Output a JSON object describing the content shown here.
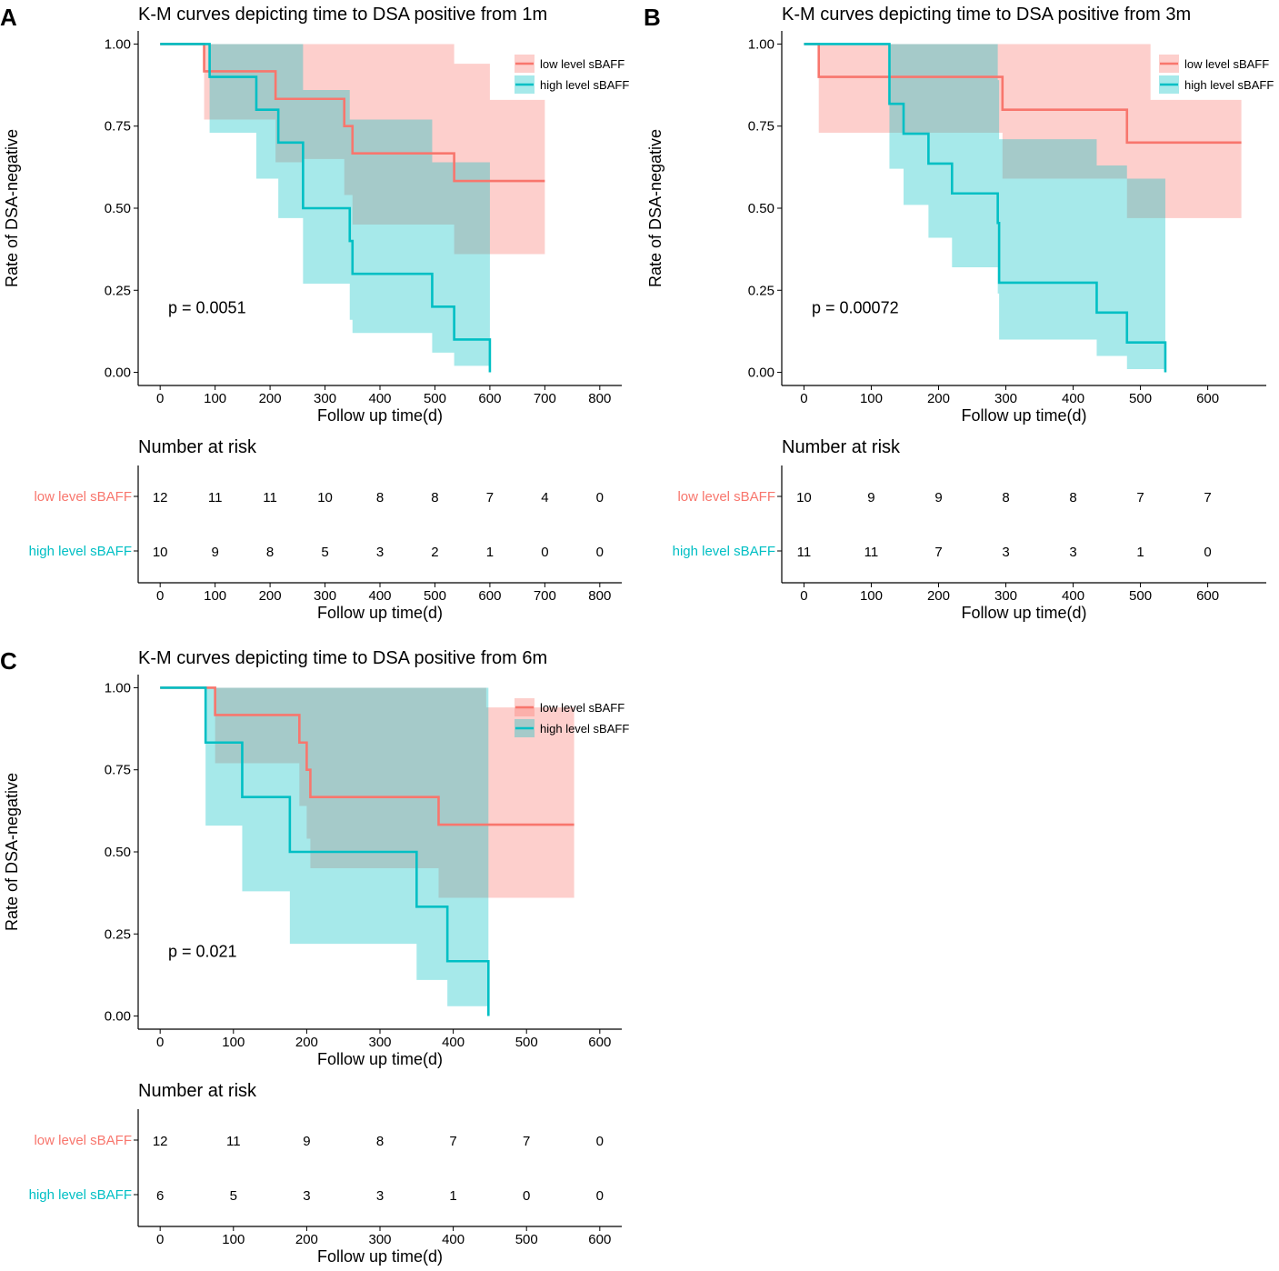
{
  "colors": {
    "low": "#F8766D",
    "high": "#00BFC4",
    "low_fill": "#F8766D",
    "high_fill": "#00BFC4",
    "axis": "#000000"
  },
  "chart_data": [
    {
      "panel_label": "A",
      "title": "K-M curves depicting time to DSA positive from 1m",
      "type": "line",
      "xlabel": "Follow up time(d)",
      "ylabel": "Rate of DSA-negative",
      "xlim": [
        -40,
        840
      ],
      "ylim": [
        -0.04,
        1.04
      ],
      "xticks": [
        0,
        100,
        200,
        300,
        400,
        500,
        600,
        700,
        800
      ],
      "yticks": [
        0,
        0.25,
        0.5,
        0.75,
        1.0
      ],
      "ytick_labels": [
        "0.00",
        "0.25",
        "0.50",
        "0.75",
        "1.00"
      ],
      "p_value": "p = 0.0051",
      "legend": [
        "low level sBAFF",
        "high level sBAFF"
      ],
      "series": [
        {
          "name": "low level sBAFF",
          "color_key": "low",
          "steps": [
            [
              0,
              1.0
            ],
            [
              80,
              0.917
            ],
            [
              160,
              0.917
            ],
            [
              210,
              0.833
            ],
            [
              335,
              0.75
            ],
            [
              350,
              0.667
            ],
            [
              535,
              0.583
            ],
            [
              700,
              0.583
            ]
          ],
          "ci": [
            [
              0,
              1.0,
              1.0
            ],
            [
              80,
              1.0,
              0.77
            ],
            [
              160,
              1.0,
              0.77
            ],
            [
              210,
              1.0,
              0.64
            ],
            [
              260,
              1.0,
              0.65
            ],
            [
              335,
              1.0,
              0.54
            ],
            [
              350,
              1.0,
              0.45
            ],
            [
              535,
              0.94,
              0.36
            ],
            [
              600,
              0.83,
              0.36
            ],
            [
              700,
              0.83,
              0.36
            ]
          ],
          "end": 700
        },
        {
          "name": "high level sBAFF",
          "color_key": "high",
          "steps": [
            [
              0,
              1.0
            ],
            [
              90,
              0.9
            ],
            [
              175,
              0.8
            ],
            [
              215,
              0.7
            ],
            [
              260,
              0.5
            ],
            [
              345,
              0.4
            ],
            [
              350,
              0.3
            ],
            [
              495,
              0.2
            ],
            [
              535,
              0.1
            ],
            [
              600,
              0.0
            ]
          ],
          "ci": [
            [
              0,
              1.0,
              1.0
            ],
            [
              90,
              1.0,
              0.73
            ],
            [
              175,
              1.0,
              0.59
            ],
            [
              215,
              1.0,
              0.47
            ],
            [
              260,
              0.86,
              0.27
            ],
            [
              345,
              0.77,
              0.16
            ],
            [
              350,
              0.77,
              0.12
            ],
            [
              495,
              0.64,
              0.06
            ],
            [
              535,
              0.64,
              0.02
            ],
            [
              600,
              0.64,
              0.02
            ]
          ],
          "end": 600
        }
      ],
      "risk_table": {
        "title": "Number at risk",
        "times": [
          0,
          100,
          200,
          300,
          400,
          500,
          600,
          700,
          800
        ],
        "rows": [
          {
            "label": "low level sBAFF",
            "color_key": "low",
            "values": [
              "12",
              "11",
              "11",
              "10",
              "8",
              "8",
              "7",
              "4",
              "0"
            ]
          },
          {
            "label": "high level sBAFF",
            "color_key": "high",
            "values": [
              "10",
              "9",
              "8",
              "5",
              "3",
              "2",
              "1",
              "0",
              "0"
            ]
          }
        ]
      }
    },
    {
      "panel_label": "B",
      "title": "K-M curves depicting time to DSA positive from 3m",
      "type": "line",
      "xlabel": "Follow up time(d)",
      "ylabel": "Rate of DSA-negative",
      "xlim": [
        -33,
        687
      ],
      "ylim": [
        -0.04,
        1.04
      ],
      "xticks": [
        0,
        100,
        200,
        300,
        400,
        500,
        600
      ],
      "yticks": [
        0,
        0.25,
        0.5,
        0.75,
        1.0
      ],
      "ytick_labels": [
        "0.00",
        "0.25",
        "0.50",
        "0.75",
        "1.00"
      ],
      "p_value": "p = 0.00072",
      "legend": [
        "low level sBAFF",
        "high level sBAFF"
      ],
      "series": [
        {
          "name": "low level sBAFF",
          "color_key": "low",
          "steps": [
            [
              0,
              1.0
            ],
            [
              22,
              0.9
            ],
            [
              295,
              0.8
            ],
            [
              480,
              0.7
            ],
            [
              650,
              0.7
            ]
          ],
          "ci": [
            [
              0,
              1.0,
              1.0
            ],
            [
              22,
              1.0,
              0.73
            ],
            [
              295,
              1.0,
              0.59
            ],
            [
              480,
              1.0,
              0.47
            ],
            [
              515,
              0.83,
              0.47
            ],
            [
              650,
              0.83,
              0.47
            ]
          ],
          "end": 650
        },
        {
          "name": "high level sBAFF",
          "color_key": "high",
          "steps": [
            [
              0,
              1.0
            ],
            [
              127,
              0.818
            ],
            [
              148,
              0.727
            ],
            [
              185,
              0.636
            ],
            [
              220,
              0.545
            ],
            [
              288,
              0.455
            ],
            [
              290,
              0.273
            ],
            [
              435,
              0.182
            ],
            [
              480,
              0.091
            ],
            [
              537,
              0.0
            ]
          ],
          "ci": [
            [
              0,
              1.0,
              1.0
            ],
            [
              127,
              1.0,
              0.62
            ],
            [
              148,
              1.0,
              0.51
            ],
            [
              185,
              1.0,
              0.41
            ],
            [
              220,
              1.0,
              0.32
            ],
            [
              288,
              0.89,
              0.24
            ],
            [
              290,
              0.71,
              0.1
            ],
            [
              435,
              0.63,
              0.05
            ],
            [
              480,
              0.59,
              0.01
            ],
            [
              537,
              0.59,
              0.01
            ]
          ],
          "end": 537
        }
      ],
      "risk_table": {
        "title": "Number at risk",
        "times": [
          0,
          100,
          200,
          300,
          400,
          500,
          600
        ],
        "rows": [
          {
            "label": "low level sBAFF",
            "color_key": "low",
            "values": [
              "10",
              "9",
              "9",
              "8",
              "8",
              "7",
              "7"
            ]
          },
          {
            "label": "high level sBAFF",
            "color_key": "high",
            "values": [
              "11",
              "11",
              "7",
              "3",
              "3",
              "1",
              "0"
            ]
          }
        ]
      }
    },
    {
      "panel_label": "C",
      "title": "K-M curves depicting time to DSA positive from 6m",
      "type": "line",
      "xlabel": "Follow up time(d)",
      "ylabel": "Rate of DSA-negative",
      "xlim": [
        -30,
        630
      ],
      "ylim": [
        -0.04,
        1.04
      ],
      "xticks": [
        0,
        100,
        200,
        300,
        400,
        500,
        600
      ],
      "yticks": [
        0,
        0.25,
        0.5,
        0.75,
        1.0
      ],
      "ytick_labels": [
        "0.00",
        "0.25",
        "0.50",
        "0.75",
        "1.00"
      ],
      "p_value": "p = 0.021",
      "legend": [
        "low level sBAFF",
        "high level sBAFF"
      ],
      "series": [
        {
          "name": "low level sBAFF",
          "color_key": "low",
          "steps": [
            [
              0,
              1.0
            ],
            [
              75,
              0.917
            ],
            [
              190,
              0.833
            ],
            [
              200,
              0.75
            ],
            [
              205,
              0.667
            ],
            [
              380,
              0.583
            ],
            [
              565,
              0.583
            ]
          ],
          "ci": [
            [
              0,
              1.0,
              1.0
            ],
            [
              75,
              1.0,
              0.77
            ],
            [
              190,
              1.0,
              0.64
            ],
            [
              200,
              1.0,
              0.54
            ],
            [
              205,
              1.0,
              0.45
            ],
            [
              380,
              1.0,
              0.36
            ],
            [
              445,
              0.94,
              0.36
            ],
            [
              565,
              0.83,
              0.36
            ]
          ],
          "end": 565
        },
        {
          "name": "high level sBAFF",
          "color_key": "high",
          "steps": [
            [
              0,
              1.0
            ],
            [
              62,
              0.833
            ],
            [
              112,
              0.667
            ],
            [
              177,
              0.5
            ],
            [
              350,
              0.333
            ],
            [
              392,
              0.167
            ],
            [
              448,
              0.0
            ]
          ],
          "ci": [
            [
              0,
              1.0,
              1.0
            ],
            [
              62,
              1.0,
              0.58
            ],
            [
              112,
              1.0,
              0.38
            ],
            [
              177,
              1.0,
              0.22
            ],
            [
              350,
              1.0,
              0.11
            ],
            [
              392,
              1.0,
              0.03
            ],
            [
              448,
              1.0,
              0.03
            ]
          ],
          "end": 448
        }
      ],
      "risk_table": {
        "title": "Number at risk",
        "times": [
          0,
          100,
          200,
          300,
          400,
          500,
          600
        ],
        "rows": [
          {
            "label": "low level sBAFF",
            "color_key": "low",
            "values": [
              "12",
              "11",
              "9",
              "8",
              "7",
              "7",
              "0"
            ]
          },
          {
            "label": "high level sBAFF",
            "color_key": "high",
            "values": [
              "6",
              "5",
              "3",
              "3",
              "1",
              "0",
              "0"
            ]
          }
        ]
      }
    }
  ]
}
